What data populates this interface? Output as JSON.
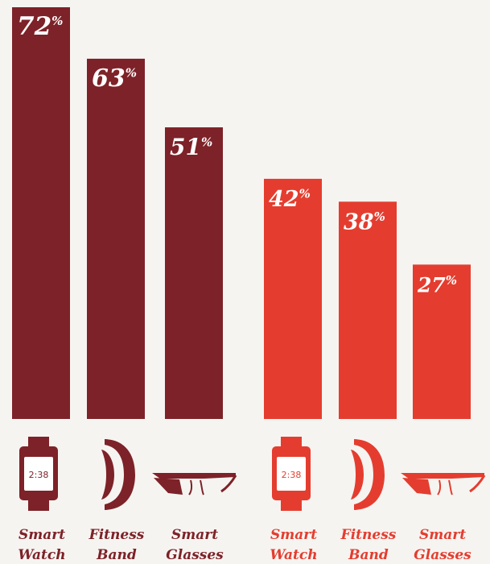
{
  "chart_data": {
    "type": "bar",
    "title": "",
    "xlabel": "",
    "ylabel": "",
    "ylim": [
      0,
      72
    ],
    "value_suffix": "%",
    "grid": false,
    "categories": [
      {
        "line1": "Smart",
        "line2": "Watch",
        "icon": "smart-watch-icon",
        "screen_text": "2:38"
      },
      {
        "line1": "Fitness",
        "line2": "Band",
        "icon": "fitness-band-icon"
      },
      {
        "line1": "Smart",
        "line2": "Glasses",
        "icon": "smart-glasses-icon"
      }
    ],
    "series": [
      {
        "values": [
          72,
          63,
          51
        ],
        "color": "#7d2228"
      },
      {
        "values": [
          42,
          38,
          27
        ],
        "color": "#e43d2f"
      }
    ]
  }
}
